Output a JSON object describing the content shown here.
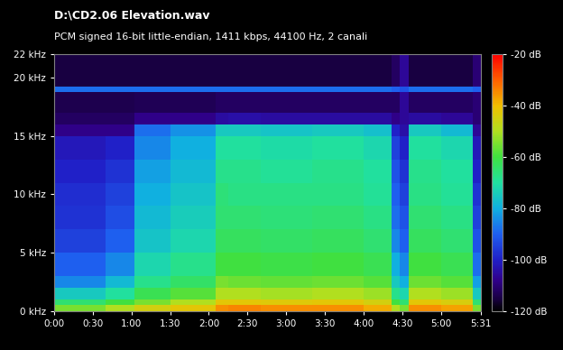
{
  "chart_data": {
    "type": "heatmap",
    "title": "D:\\CD2.06 Elevation.wav",
    "subtitle": "PCM signed 16-bit little-endian, 1411 kbps, 44100 Hz, 2 canali",
    "x_edges": [
      0,
      40,
      62,
      90,
      125,
      135,
      160,
      200,
      240,
      262,
      268,
      275,
      300,
      325,
      331
    ],
    "y_edges": [
      0,
      0.5,
      1,
      2,
      3,
      5,
      7,
      9,
      11,
      13,
      15,
      16,
      17,
      18.8,
      19.2,
      22
    ],
    "cells": [
      [
        -55,
        -65,
        -75,
        -85,
        -90,
        -95,
        -97,
        -98,
        -100,
        -102,
        -108,
        -112,
        -114,
        -88,
        -115
      ],
      [
        -50,
        -60,
        -70,
        -78,
        -85,
        -90,
        -93,
        -95,
        -97,
        -100,
        -108,
        -112,
        -114,
        -88,
        -115
      ],
      [
        -45,
        -55,
        -62,
        -68,
        -72,
        -76,
        -78,
        -80,
        -82,
        -85,
        -88,
        -108,
        -113,
        -88,
        -115
      ],
      [
        -42,
        -50,
        -58,
        -64,
        -68,
        -72,
        -74,
        -76,
        -78,
        -80,
        -84,
        -108,
        -113,
        -88,
        -115
      ],
      [
        -35,
        -42,
        -50,
        -55,
        -60,
        -63,
        -65,
        -66,
        -68,
        -70,
        -75,
        -105,
        -112,
        -88,
        -115
      ],
      [
        -34,
        -42,
        -50,
        -56,
        -60,
        -63,
        -65,
        -67,
        -68,
        -70,
        -75,
        -104,
        -112,
        -88,
        -115
      ],
      [
        -35,
        -43,
        -51,
        -57,
        -61,
        -64,
        -66,
        -67,
        -69,
        -71,
        -76,
        -105,
        -112,
        -88,
        -115
      ],
      [
        -35,
        -42,
        -50,
        -56,
        -60,
        -63,
        -65,
        -67,
        -68,
        -70,
        -75,
        -105,
        -112,
        -88,
        -115
      ],
      [
        -38,
        -45,
        -52,
        -58,
        -62,
        -65,
        -67,
        -69,
        -70,
        -72,
        -77,
        -105,
        -112,
        -88,
        -115
      ],
      [
        -50,
        -60,
        -68,
        -75,
        -80,
        -85,
        -88,
        -90,
        -92,
        -95,
        -100,
        -108,
        -112,
        -90,
        -112
      ],
      [
        -55,
        -65,
        -72,
        -80,
        -85,
        -90,
        -92,
        -95,
        -97,
        -100,
        -104,
        -106,
        -106,
        -92,
        -106
      ],
      [
        -35,
        -42,
        -50,
        -56,
        -60,
        -63,
        -65,
        -67,
        -68,
        -70,
        -75,
        -105,
        -112,
        -88,
        -115
      ],
      [
        -37,
        -44,
        -52,
        -58,
        -62,
        -65,
        -67,
        -69,
        -70,
        -72,
        -78,
        -106,
        -112,
        -88,
        -115
      ],
      [
        -55,
        -65,
        -75,
        -82,
        -88,
        -92,
        -95,
        -97,
        -100,
        -102,
        -106,
        -110,
        -110,
        -90,
        -110
      ]
    ],
    "xlim": [
      0,
      331
    ],
    "xticks": [
      {
        "value": 0,
        "label": "0:00"
      },
      {
        "value": 30,
        "label": "0:30"
      },
      {
        "value": 60,
        "label": "1:00"
      },
      {
        "value": 90,
        "label": "1:30"
      },
      {
        "value": 120,
        "label": "2:00"
      },
      {
        "value": 150,
        "label": "2:30"
      },
      {
        "value": 180,
        "label": "3:00"
      },
      {
        "value": 210,
        "label": "3:30"
      },
      {
        "value": 240,
        "label": "4:00"
      },
      {
        "value": 270,
        "label": "4:30"
      },
      {
        "value": 300,
        "label": "5:00"
      },
      {
        "value": 331,
        "label": "5:31"
      }
    ],
    "ylim": [
      0,
      22
    ],
    "yticks": [
      {
        "value": 0,
        "label": "0 kHz"
      },
      {
        "value": 5,
        "label": "5 kHz"
      },
      {
        "value": 10,
        "label": "10 kHz"
      },
      {
        "value": 15,
        "label": "15 kHz"
      },
      {
        "value": 20,
        "label": "20 kHz"
      },
      {
        "value": 22,
        "label": "22 kHz"
      }
    ],
    "colorbar": {
      "range": [
        -120,
        -20
      ],
      "ticks": [
        {
          "value": -20,
          "label": "-20 dB"
        },
        {
          "value": -40,
          "label": "-40 dB"
        },
        {
          "value": -60,
          "label": "-60 dB"
        },
        {
          "value": -80,
          "label": "-80 dB"
        },
        {
          "value": -100,
          "label": "-100 dB"
        },
        {
          "value": -120,
          "label": "-120 dB"
        }
      ]
    }
  }
}
